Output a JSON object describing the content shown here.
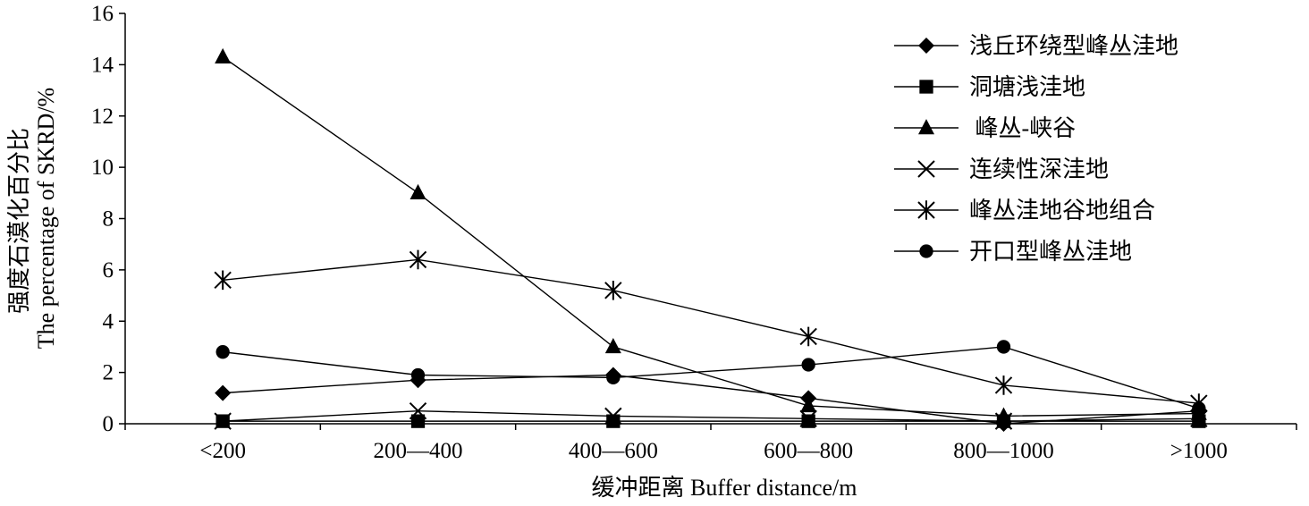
{
  "chart_data": {
    "type": "line",
    "title": "",
    "xlabel": "缓冲距离 Buffer distance/m",
    "ylabel_cn": "强度石漠化百分比",
    "ylabel_en": "The percentage of SKRD/%",
    "categories": [
      "<200",
      "200—400",
      "400—600",
      "600—800",
      "800—1000",
      ">1000"
    ],
    "ylim": [
      0,
      16
    ],
    "yticks": [
      "0",
      "2",
      "4",
      "6",
      "8",
      "10",
      "12",
      "14",
      "16"
    ],
    "grid": false,
    "legend_position": "top-right",
    "series": [
      {
        "name": "浅丘环绕型峰丛洼地",
        "marker": "diamond",
        "values": [
          1.2,
          1.7,
          1.9,
          1.0,
          0.0,
          0.5
        ]
      },
      {
        "name": "洞塘浅洼地",
        "marker": "square",
        "values": [
          0.1,
          0.1,
          0.1,
          0.1,
          0.1,
          0.1
        ]
      },
      {
        "name": " 峰丛-峡谷",
        "marker": "triangle",
        "values": [
          14.3,
          9.0,
          3.0,
          0.7,
          0.3,
          0.4
        ]
      },
      {
        "name": "连续性深洼地",
        "marker": "x",
        "values": [
          0.1,
          0.5,
          0.3,
          0.2,
          0.1,
          0.2
        ]
      },
      {
        "name": "峰丛洼地谷地组合",
        "marker": "asterisk",
        "values": [
          5.6,
          6.4,
          5.2,
          3.4,
          1.5,
          0.8
        ]
      },
      {
        "name": "开口型峰丛洼地",
        "marker": "circle",
        "values": [
          2.8,
          1.9,
          1.8,
          2.3,
          3.0,
          0.6
        ]
      }
    ]
  }
}
